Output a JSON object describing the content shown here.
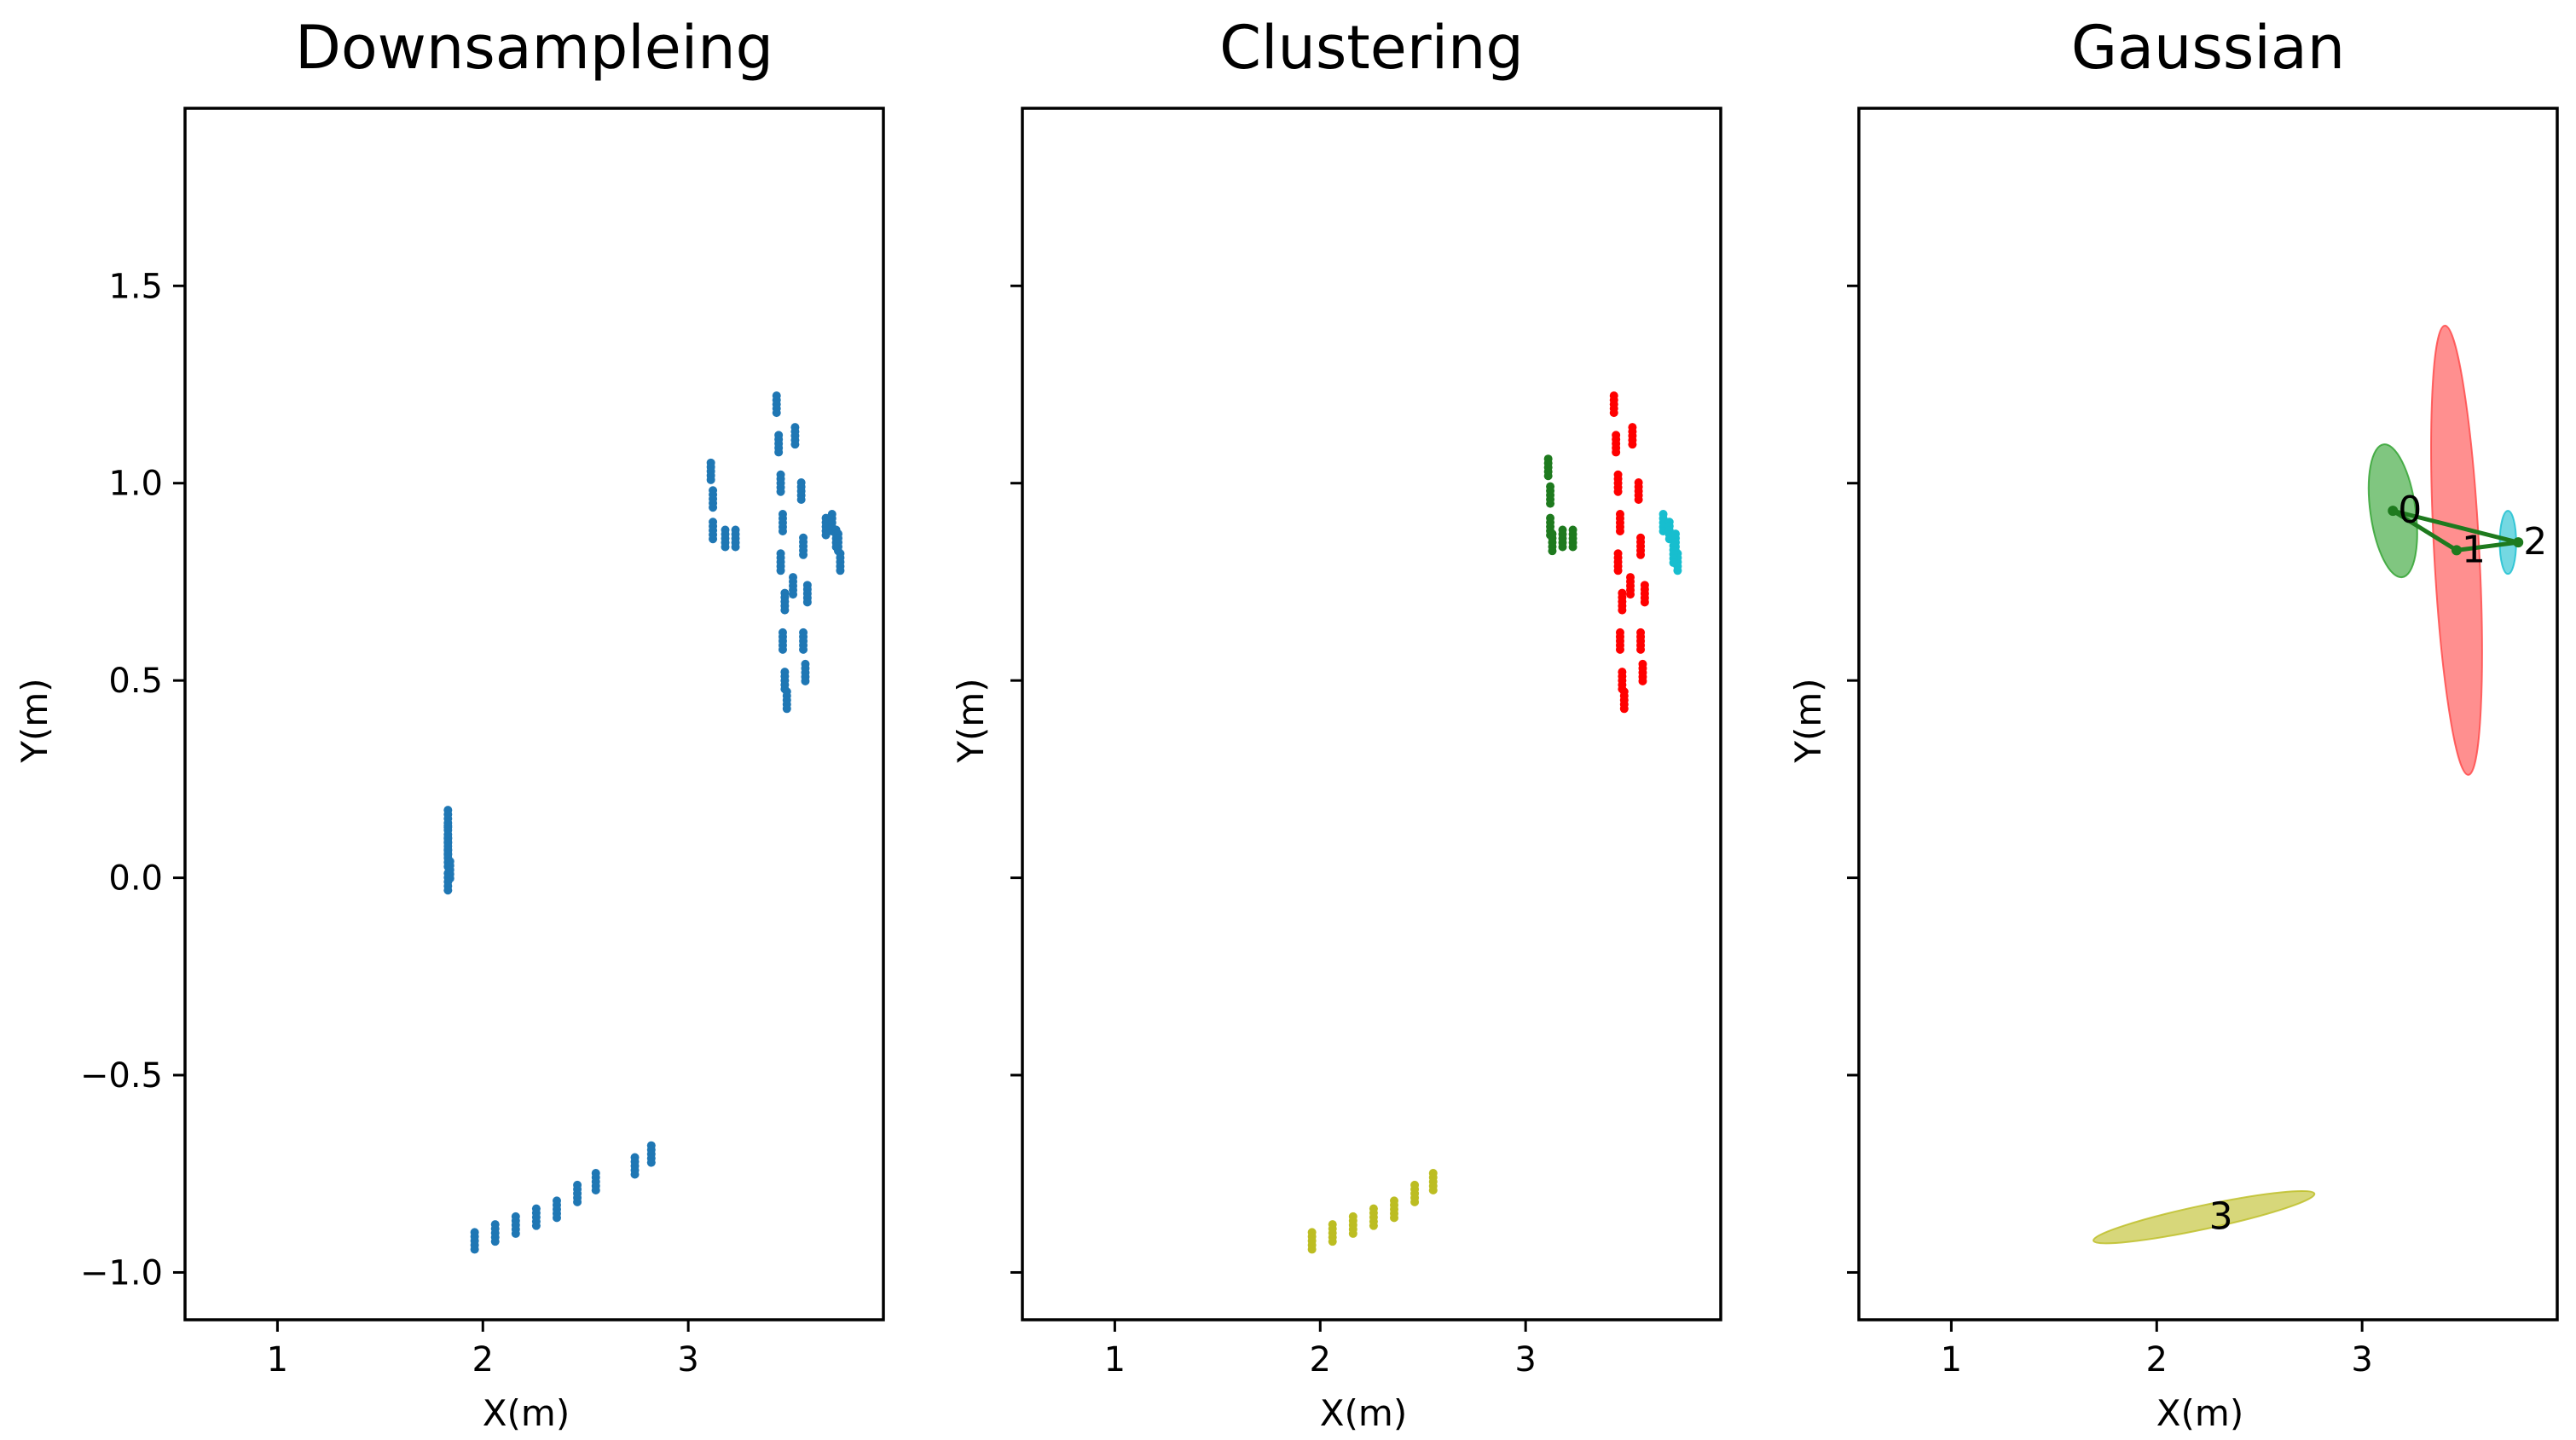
{
  "chart_data": [
    {
      "type": "scatter",
      "title": "Downsampleing",
      "xlabel": "X(m)",
      "ylabel": "Y(m)",
      "xticks": [
        "1",
        "2",
        "3"
      ],
      "yticks": [
        "1.5",
        "1.0",
        "0.5",
        "0.0",
        "−0.5",
        "−1.0"
      ],
      "xlim": [
        0.55,
        3.95
      ],
      "ylim": [
        -1.12,
        1.95
      ],
      "series": [
        {
          "name": "points",
          "color": "#1f77b4",
          "points": [
            [
              1.83,
              0.15
            ],
            [
              1.83,
              0.11
            ],
            [
              1.83,
              0.08
            ],
            [
              1.83,
              0.05
            ],
            [
              1.84,
              0.02
            ],
            [
              1.83,
              -0.01
            ],
            [
              1.96,
              -0.92
            ],
            [
              2.06,
              -0.9
            ],
            [
              2.16,
              -0.88
            ],
            [
              2.26,
              -0.86
            ],
            [
              2.36,
              -0.84
            ],
            [
              2.46,
              -0.8
            ],
            [
              2.55,
              -0.77
            ],
            [
              2.74,
              -0.73
            ],
            [
              2.82,
              -0.7
            ],
            [
              3.11,
              1.03
            ],
            [
              3.12,
              0.96
            ],
            [
              3.12,
              0.88
            ],
            [
              3.18,
              0.86
            ],
            [
              3.23,
              0.86
            ],
            [
              3.43,
              1.2
            ],
            [
              3.44,
              1.1
            ],
            [
              3.45,
              1.0
            ],
            [
              3.46,
              0.9
            ],
            [
              3.45,
              0.8
            ],
            [
              3.47,
              0.7
            ],
            [
              3.46,
              0.6
            ],
            [
              3.47,
              0.5
            ],
            [
              3.48,
              0.45
            ],
            [
              3.52,
              1.12
            ],
            [
              3.55,
              0.98
            ],
            [
              3.56,
              0.84
            ],
            [
              3.58,
              0.72
            ],
            [
              3.56,
              0.6
            ],
            [
              3.57,
              0.52
            ],
            [
              3.67,
              0.89
            ],
            [
              3.7,
              0.9
            ],
            [
              3.72,
              0.86
            ],
            [
              3.74,
              0.8
            ],
            [
              3.73,
              0.85
            ],
            [
              3.51,
              0.74
            ]
          ]
        }
      ]
    },
    {
      "type": "scatter",
      "title": "Clustering",
      "xlabel": "X(m)",
      "ylabel": "Y(m)",
      "xticks": [
        "1",
        "2",
        "3"
      ],
      "yticks": [],
      "xlim": [
        0.55,
        3.95
      ],
      "ylim": [
        -1.12,
        1.95
      ],
      "series": [
        {
          "name": "cluster-green",
          "color": "#1e7a1e",
          "points": [
            [
              3.11,
              1.04
            ],
            [
              3.12,
              0.97
            ],
            [
              3.12,
              0.89
            ],
            [
              3.13,
              0.85
            ],
            [
              3.18,
              0.86
            ],
            [
              3.23,
              0.86
            ]
          ]
        },
        {
          "name": "cluster-red",
          "color": "#ff0000",
          "points": [
            [
              3.43,
              1.2
            ],
            [
              3.44,
              1.1
            ],
            [
              3.45,
              1.0
            ],
            [
              3.46,
              0.9
            ],
            [
              3.45,
              0.8
            ],
            [
              3.47,
              0.7
            ],
            [
              3.46,
              0.6
            ],
            [
              3.47,
              0.5
            ],
            [
              3.48,
              0.45
            ],
            [
              3.52,
              1.12
            ],
            [
              3.55,
              0.98
            ],
            [
              3.56,
              0.84
            ],
            [
              3.58,
              0.72
            ],
            [
              3.56,
              0.6
            ],
            [
              3.57,
              0.52
            ],
            [
              3.51,
              0.74
            ]
          ]
        },
        {
          "name": "cluster-cyan",
          "color": "#17becf",
          "points": [
            [
              3.67,
              0.9
            ],
            [
              3.7,
              0.88
            ],
            [
              3.73,
              0.85
            ],
            [
              3.74,
              0.8
            ],
            [
              3.72,
              0.82
            ]
          ]
        },
        {
          "name": "cluster-yellow",
          "color": "#bcbd22",
          "points": [
            [
              1.96,
              -0.92
            ],
            [
              2.06,
              -0.9
            ],
            [
              2.16,
              -0.88
            ],
            [
              2.26,
              -0.86
            ],
            [
              2.36,
              -0.84
            ],
            [
              2.46,
              -0.8
            ],
            [
              2.55,
              -0.77
            ]
          ]
        }
      ]
    },
    {
      "type": "scatter",
      "title": "Gaussian",
      "xlabel": "X(m)",
      "ylabel": "Y(m)",
      "xticks": [
        "1",
        "2",
        "3"
      ],
      "yticks": [],
      "xlim": [
        0.55,
        3.95
      ],
      "ylim": [
        -1.12,
        1.95
      ],
      "ellipses": [
        {
          "id": "0",
          "color": "#2ca02c",
          "cx": 3.15,
          "cy": 0.93,
          "rx": 0.11,
          "ry": 0.17,
          "angle": -8
        },
        {
          "id": "1",
          "color": "#ff4444",
          "cx": 3.46,
          "cy": 0.83,
          "rx": 0.11,
          "ry": 0.57,
          "angle": -3
        },
        {
          "id": "2",
          "color": "#17becf",
          "cx": 3.71,
          "cy": 0.85,
          "rx": 0.04,
          "ry": 0.08,
          "angle": 0
        },
        {
          "id": "3",
          "color": "#bcbd22",
          "cx": 2.23,
          "cy": -0.86,
          "rx": 0.55,
          "ry": 0.03,
          "angle": -12
        }
      ],
      "graph": {
        "color": "#1e7a1e",
        "nodes": [
          {
            "id": "0",
            "x": 3.15,
            "y": 0.93,
            "label": "0"
          },
          {
            "id": "1",
            "x": 3.46,
            "y": 0.83,
            "label": "1"
          },
          {
            "id": "2",
            "x": 3.76,
            "y": 0.85,
            "label": "2"
          },
          {
            "id": "3",
            "x": 2.23,
            "y": -0.86,
            "label": "3"
          }
        ],
        "edges": [
          [
            "0",
            "1"
          ],
          [
            "1",
            "2"
          ],
          [
            "0",
            "2"
          ]
        ]
      }
    }
  ]
}
